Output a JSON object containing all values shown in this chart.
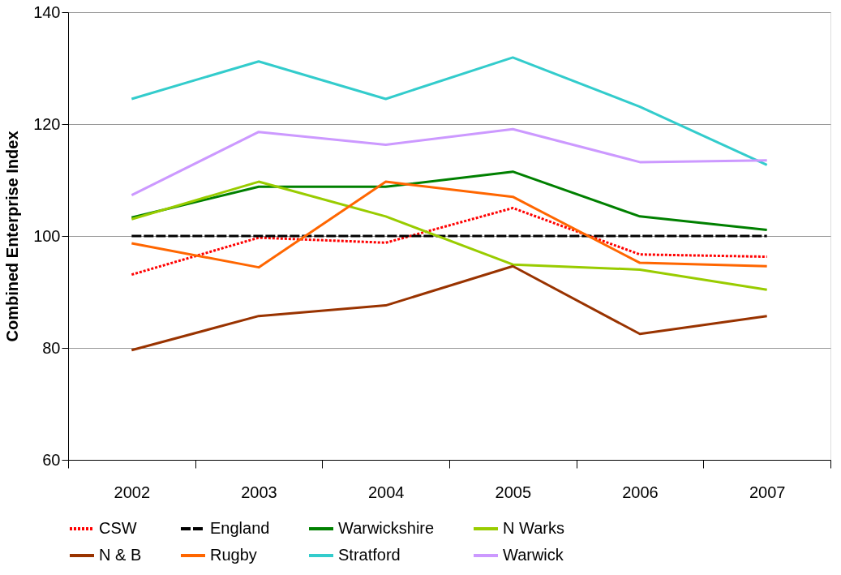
{
  "chart_data": {
    "type": "line",
    "ylabel": "Combined Enterprise Index",
    "categories": [
      "2002",
      "2003",
      "2004",
      "2005",
      "2006",
      "2007"
    ],
    "ylim": [
      60,
      140
    ],
    "yticks": [
      60,
      80,
      100,
      120,
      140
    ],
    "grid": "y",
    "legend": "bottom",
    "marker": "none",
    "series": [
      {
        "name": "CSW",
        "color": "#ff0000",
        "line_style": "dotted",
        "values": [
          93.1,
          99.7,
          98.8,
          105,
          96.7,
          96.3
        ]
      },
      {
        "name": "England",
        "color": "#000000",
        "line_style": "dashed",
        "values": [
          100,
          100,
          100,
          100,
          100,
          100
        ]
      },
      {
        "name": "Warwickshire",
        "color": "#008000",
        "line_style": "solid",
        "values": [
          103.3,
          108.8,
          108.8,
          111.5,
          103.5,
          101.1
        ]
      },
      {
        "name": "N Warks",
        "color": "#99cc00",
        "line_style": "solid",
        "values": [
          103,
          109.7,
          103.5,
          94.9,
          94,
          90.4
        ]
      },
      {
        "name": "N & B",
        "color": "#993300",
        "line_style": "solid",
        "values": [
          79.6,
          85.7,
          87.6,
          94.6,
          82.5,
          85.7
        ]
      },
      {
        "name": "Rugby",
        "color": "#ff6600",
        "line_style": "solid",
        "values": [
          98.7,
          94.4,
          109.7,
          107,
          95.2,
          94.6
        ]
      },
      {
        "name": "Stratford",
        "color": "#33cccc",
        "line_style": "solid",
        "values": [
          124.5,
          131.2,
          124.5,
          131.9,
          123.1,
          112.7
        ]
      },
      {
        "name": "Warwick",
        "color": "#cc99ff",
        "line_style": "solid",
        "values": [
          107.3,
          118.6,
          116.3,
          119.1,
          113.2,
          113.5
        ]
      }
    ]
  }
}
